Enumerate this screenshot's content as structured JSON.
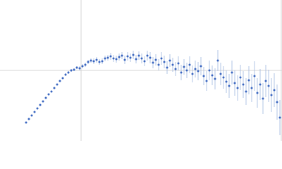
{
  "chart_data": {
    "type": "scatter",
    "color": "#3a66c0",
    "error_color": "#9fb6e0",
    "xlim": [
      0,
      400
    ],
    "ylim": [
      0,
      200
    ],
    "x": [
      37,
      41,
      45,
      49,
      53,
      57,
      61,
      65,
      69,
      73,
      77,
      81,
      85,
      89,
      93,
      97,
      101,
      105,
      109,
      113,
      117,
      121,
      125,
      129,
      133,
      137,
      141,
      145,
      149,
      153,
      157,
      161,
      165,
      169,
      173,
      177,
      181,
      185,
      189,
      193,
      197,
      201,
      205,
      209,
      213,
      217,
      221,
      225,
      229,
      233,
      237,
      241,
      245,
      249,
      253,
      257,
      261,
      265,
      269,
      273,
      277,
      281,
      285,
      289,
      293,
      297,
      301,
      305,
      309,
      313,
      317,
      321,
      325,
      329,
      333,
      337,
      341,
      345,
      349,
      353,
      357,
      361,
      365,
      369,
      373,
      377,
      381,
      385,
      389,
      393,
      397
    ],
    "values": [
      26,
      31,
      36,
      41,
      46,
      51,
      56,
      61,
      66,
      70,
      75,
      80,
      85,
      89,
      94,
      97,
      100,
      101,
      104,
      103,
      106,
      108,
      112,
      114,
      113,
      115,
      112,
      113,
      117,
      118,
      120,
      117,
      116,
      119,
      121,
      115,
      120,
      118,
      122,
      116,
      121,
      117,
      113,
      121,
      118,
      111,
      115,
      108,
      117,
      112,
      104,
      114,
      108,
      102,
      110,
      97,
      105,
      100,
      108,
      95,
      102,
      99,
      106,
      92,
      85,
      100,
      93,
      88,
      114,
      95,
      90,
      84,
      78,
      97,
      82,
      75,
      90,
      80,
      70,
      86,
      75,
      92,
      68,
      80,
      60,
      85,
      78,
      65,
      72,
      55,
      33
    ],
    "errors": [
      1,
      1,
      1,
      1,
      1,
      1,
      1,
      1,
      1,
      1,
      1,
      1,
      1,
      1,
      2,
      2,
      2,
      2,
      2,
      3,
      3,
      3,
      3,
      3,
      4,
      4,
      4,
      4,
      4,
      4,
      5,
      5,
      5,
      5,
      5,
      6,
      6,
      6,
      6,
      6,
      6,
      7,
      7,
      7,
      8,
      8,
      8,
      8,
      9,
      9,
      9,
      9,
      10,
      10,
      10,
      11,
      11,
      11,
      12,
      12,
      12,
      13,
      13,
      13,
      14,
      14,
      14,
      15,
      15,
      16,
      16,
      16,
      17,
      17,
      18,
      18,
      18,
      19,
      19,
      20,
      20,
      21,
      21,
      22,
      22,
      23,
      23,
      24,
      24,
      25,
      25
    ]
  }
}
